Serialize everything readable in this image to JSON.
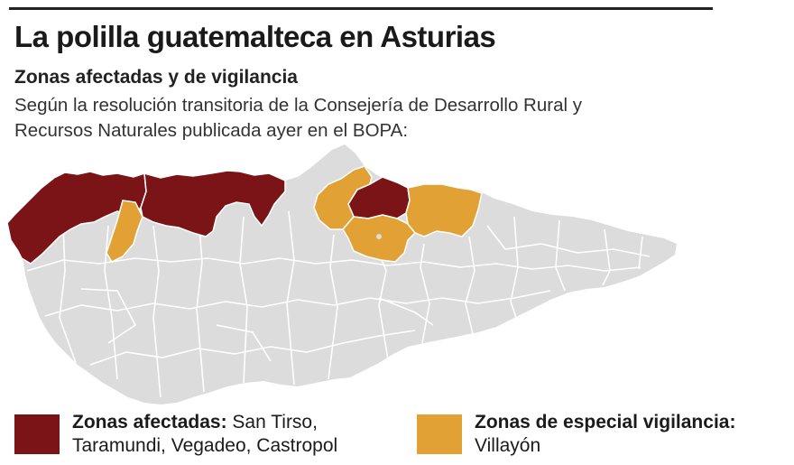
{
  "header": {
    "title": "La polilla guatemalteca en Asturias",
    "subtitle": "Zonas afectadas y de vigilancia",
    "description": "Según la resolución transitoria de la Consejería de Desarrollo Rural y Recursos Naturales publicada ayer en el BOPA:"
  },
  "colors": {
    "affected": "#7b1416",
    "vigilance": "#e1a134",
    "land": "#dcdcdc",
    "borders": "#ffffff"
  },
  "legend": {
    "affected": {
      "label": "Zonas afectadas:",
      "text": "San Tirso, Taramundi, Vegadeo, Castropol"
    },
    "vigilance": {
      "label": "Zonas de especial vigilancia:",
      "text": "Villayón"
    }
  }
}
